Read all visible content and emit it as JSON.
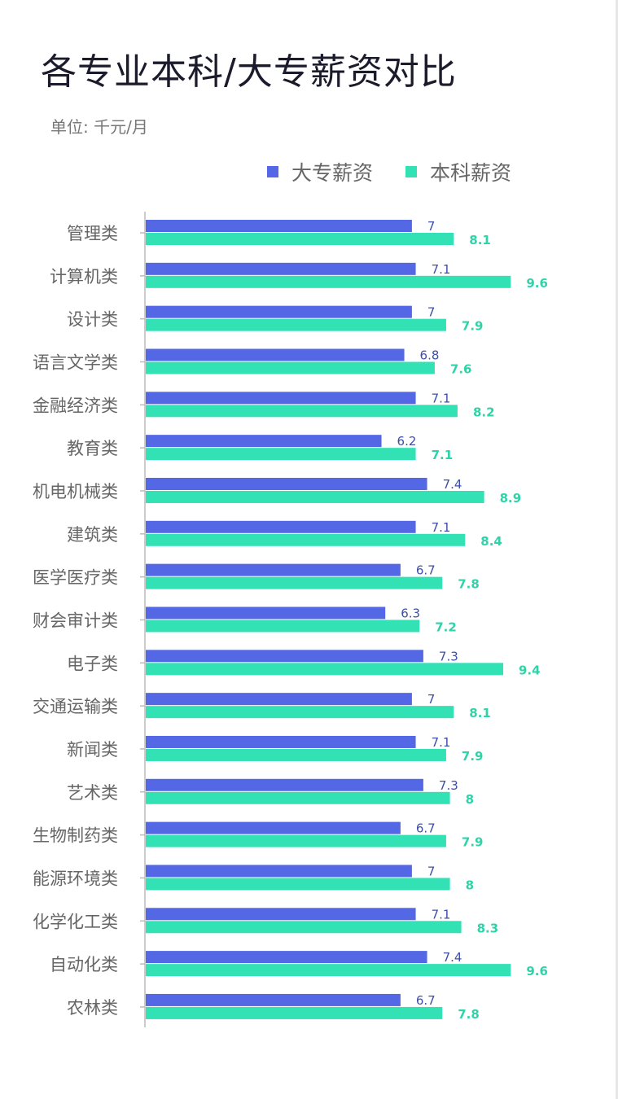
{
  "chart_data": {
    "type": "bar",
    "orientation": "horizontal",
    "title": "各专业本科/大专薪资对比",
    "subtitle": "单位: 千元/月",
    "legend_position": "top-right",
    "grid": false,
    "xlim": [
      0,
      10
    ],
    "categories": [
      "管理类",
      "计算机类",
      "设计类",
      "语言文学类",
      "金融经济类",
      "教育类",
      "机电机械类",
      "建筑类",
      "医学医疗类",
      "财会审计类",
      "电子类",
      "交通运输类",
      "新闻类",
      "艺术类",
      "生物制药类",
      "能源环境类",
      "化学化工类",
      "自动化类",
      "农林类"
    ],
    "series": [
      {
        "name": "大专薪资",
        "color": "#5468e6",
        "label_color": "#3d4fa8",
        "values": [
          7,
          7.1,
          7,
          6.8,
          7.1,
          6.2,
          7.4,
          7.1,
          6.7,
          6.3,
          7.3,
          7,
          7.1,
          7.3,
          6.7,
          7,
          7.1,
          7.4,
          6.7
        ]
      },
      {
        "name": "本科薪资",
        "color": "#33e2b4",
        "label_color": "#2fd3a8",
        "values": [
          8.1,
          9.6,
          7.9,
          7.6,
          8.2,
          7.1,
          8.9,
          8.4,
          7.8,
          7.2,
          9.4,
          8.1,
          7.9,
          8,
          7.9,
          8,
          8.3,
          9.6,
          7.8
        ]
      }
    ]
  }
}
